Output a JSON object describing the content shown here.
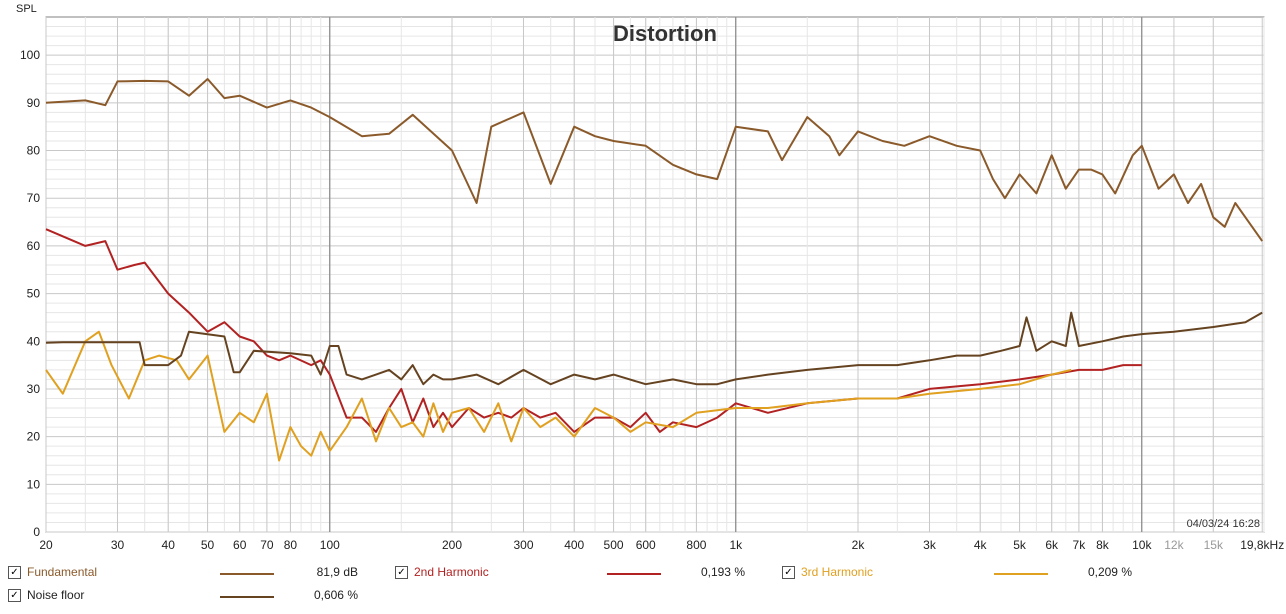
{
  "chart_data": {
    "type": "line",
    "title": "Distortion",
    "ylabel": "SPL",
    "x_scale": "log",
    "xlim": [
      20,
      20000
    ],
    "ylim": [
      0,
      108
    ],
    "x_ticks": [
      {
        "v": 20,
        "label": "20",
        "major": true
      },
      {
        "v": 30,
        "label": "30",
        "major": true
      },
      {
        "v": 40,
        "label": "40",
        "major": true
      },
      {
        "v": 50,
        "label": "50",
        "major": true
      },
      {
        "v": 60,
        "label": "60",
        "major": true
      },
      {
        "v": 70,
        "label": "70",
        "major": true
      },
      {
        "v": 80,
        "label": "80",
        "major": true
      },
      {
        "v": 100,
        "label": "100",
        "major": true
      },
      {
        "v": 200,
        "label": "200",
        "major": true
      },
      {
        "v": 300,
        "label": "300",
        "major": true
      },
      {
        "v": 400,
        "label": "400",
        "major": true
      },
      {
        "v": 500,
        "label": "500",
        "major": true
      },
      {
        "v": 600,
        "label": "600",
        "major": true
      },
      {
        "v": 800,
        "label": "800",
        "major": true
      },
      {
        "v": 1000,
        "label": "1k",
        "major": true
      },
      {
        "v": 2000,
        "label": "2k",
        "major": true
      },
      {
        "v": 3000,
        "label": "3k",
        "major": true
      },
      {
        "v": 4000,
        "label": "4k",
        "major": true
      },
      {
        "v": 5000,
        "label": "5k",
        "major": true
      },
      {
        "v": 6000,
        "label": "6k",
        "major": true
      },
      {
        "v": 7000,
        "label": "7k",
        "major": true
      },
      {
        "v": 8000,
        "label": "8k",
        "major": true
      },
      {
        "v": 10000,
        "label": "10k",
        "major": true
      },
      {
        "v": 12000,
        "label": "12k",
        "major": false
      },
      {
        "v": 15000,
        "label": "15k",
        "major": false
      },
      {
        "v": 19800,
        "label": "19,8kHz",
        "major": true
      }
    ],
    "y_ticks": [
      0,
      10,
      20,
      30,
      40,
      50,
      60,
      70,
      80,
      90,
      100
    ],
    "grid": true,
    "timestamp": "04/03/24 16:28",
    "series": [
      {
        "name": "Fundamental",
        "color": "#8b5a2b",
        "x": [
          20,
          25,
          28,
          30,
          35,
          40,
          45,
          50,
          55,
          60,
          70,
          80,
          90,
          100,
          120,
          140,
          160,
          200,
          230,
          250,
          300,
          350,
          400,
          450,
          500,
          600,
          700,
          800,
          900,
          1000,
          1200,
          1300,
          1500,
          1700,
          1800,
          2000,
          2300,
          2600,
          3000,
          3500,
          4000,
          4300,
          4600,
          5000,
          5500,
          6000,
          6500,
          7000,
          7500,
          8000,
          8600,
          9500,
          10000,
          11000,
          12000,
          13000,
          14000,
          15000,
          16000,
          17000,
          18000,
          19800
        ],
        "y": [
          90,
          90.5,
          89.5,
          94.5,
          94.6,
          94.5,
          91.5,
          95,
          91,
          91.5,
          89,
          90.5,
          89,
          87,
          83,
          83.5,
          87.5,
          80,
          69,
          85,
          88,
          73,
          85,
          83,
          82,
          81,
          77,
          75,
          74,
          85,
          84,
          78,
          87,
          83,
          79,
          84,
          82,
          81,
          83,
          81,
          80,
          74,
          70,
          75,
          71,
          79,
          72,
          76,
          76,
          75,
          71,
          79,
          81,
          72,
          75,
          69,
          73,
          66,
          64,
          69,
          66,
          61
        ]
      },
      {
        "name": "2nd Harmonic",
        "color": "#b22222",
        "x": [
          20,
          25,
          28,
          30,
          33,
          35,
          40,
          45,
          50,
          55,
          60,
          65,
          70,
          75,
          80,
          90,
          95,
          100,
          110,
          120,
          130,
          140,
          150,
          160,
          170,
          180,
          190,
          200,
          220,
          240,
          260,
          280,
          300,
          330,
          360,
          400,
          450,
          500,
          550,
          600,
          650,
          700,
          800,
          900,
          1000,
          1200,
          1500,
          2000,
          2500,
          3000,
          4000,
          5000,
          6000,
          7000,
          8000,
          9000,
          10000
        ],
        "y": [
          63.5,
          60,
          61,
          55,
          56,
          56.5,
          50,
          46,
          42,
          44,
          41,
          40,
          37,
          36,
          37,
          35,
          36,
          33,
          24,
          24,
          21,
          26,
          30,
          23,
          28,
          22,
          25,
          22,
          26,
          24,
          25,
          24,
          26,
          24,
          25,
          21,
          24,
          24,
          22,
          25,
          21,
          23,
          22,
          24,
          27,
          25,
          27,
          28,
          28,
          30,
          31,
          32,
          33,
          34,
          34,
          35,
          35
        ]
      },
      {
        "name": "3rd Harmonic",
        "color": "#e0a020",
        "x": [
          20,
          22,
          25,
          27,
          29,
          32,
          35,
          38,
          42,
          45,
          50,
          55,
          60,
          65,
          70,
          75,
          80,
          85,
          90,
          95,
          100,
          110,
          120,
          130,
          140,
          150,
          160,
          170,
          180,
          190,
          200,
          220,
          240,
          260,
          280,
          300,
          330,
          360,
          400,
          450,
          500,
          550,
          600,
          700,
          800,
          1000,
          1200,
          1500,
          2000,
          2500,
          3000,
          4000,
          5000,
          6000,
          6700
        ],
        "y": [
          34,
          29,
          40,
          42,
          35,
          28,
          36,
          37,
          36,
          32,
          37,
          21,
          25,
          23,
          29,
          15,
          22,
          18,
          16,
          21,
          17,
          22,
          28,
          19,
          26,
          22,
          23,
          20,
          27,
          21,
          25,
          26,
          21,
          27,
          19,
          26,
          22,
          24,
          20,
          26,
          24,
          21,
          23,
          22,
          25,
          26,
          26,
          27,
          28,
          28,
          29,
          30,
          31,
          33,
          34
        ]
      },
      {
        "name": "Noise floor",
        "color": "#654321",
        "x": [
          20,
          22,
          25,
          30,
          34,
          35,
          40,
          43,
          45,
          55,
          58,
          60,
          65,
          80,
          90,
          95,
          100,
          105,
          110,
          120,
          130,
          140,
          150,
          160,
          170,
          180,
          190,
          200,
          230,
          260,
          300,
          350,
          400,
          450,
          500,
          600,
          700,
          800,
          900,
          1000,
          1200,
          1500,
          2000,
          2500,
          3000,
          3500,
          4000,
          4500,
          5000,
          5200,
          5500,
          6000,
          6500,
          6700,
          7000,
          8000,
          9000,
          10000,
          12000,
          15000,
          18000,
          19800
        ],
        "y": [
          39.7,
          39.8,
          39.8,
          39.8,
          39.8,
          35,
          35,
          37,
          42,
          41,
          33.5,
          33.5,
          38,
          37.5,
          37,
          33,
          39,
          39,
          33,
          32,
          33,
          34,
          32,
          35,
          31,
          33,
          32,
          32,
          33,
          31,
          34,
          31,
          33,
          32,
          33,
          31,
          32,
          31,
          31,
          32,
          33,
          34,
          35,
          35,
          36,
          37,
          37,
          38,
          39,
          45,
          38,
          40,
          39,
          46,
          39,
          40,
          41,
          41.5,
          42,
          43,
          44,
          46
        ]
      }
    ]
  },
  "legend": [
    {
      "name": "Fundamental",
      "value": "81,9 dB",
      "checked": "✓"
    },
    {
      "name": "2nd Harmonic",
      "value": "0,193 %",
      "checked": "✓"
    },
    {
      "name": "3rd Harmonic",
      "value": "0,209 %",
      "checked": "✓"
    },
    {
      "name": "Noise floor",
      "value": "0,606 %",
      "checked": "✓"
    }
  ]
}
